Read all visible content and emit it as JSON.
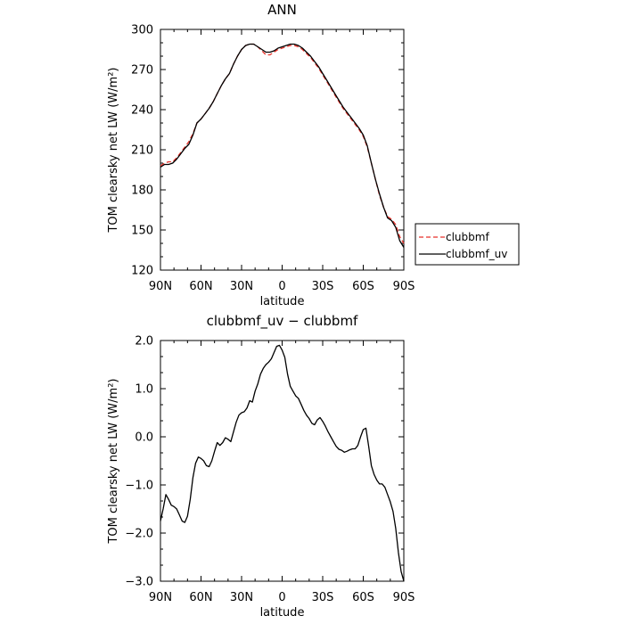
{
  "chart_data": [
    {
      "type": "line",
      "title": "ANN",
      "xlabel": "latitude",
      "ylabel": "TOM clearsky net LW (W/m²)",
      "xlim": [
        90,
        -90
      ],
      "ylim": [
        120,
        300
      ],
      "x_ticks": [
        {
          "value": 90,
          "label": "90N"
        },
        {
          "value": 60,
          "label": "60N"
        },
        {
          "value": 30,
          "label": "30N"
        },
        {
          "value": 0,
          "label": "0"
        },
        {
          "value": -30,
          "label": "30S"
        },
        {
          "value": -60,
          "label": "60S"
        },
        {
          "value": -90,
          "label": "90S"
        }
      ],
      "y_ticks": [
        {
          "value": 120,
          "label": "120"
        },
        {
          "value": 150,
          "label": "150"
        },
        {
          "value": 180,
          "label": "180"
        },
        {
          "value": 210,
          "label": "210"
        },
        {
          "value": 240,
          "label": "240"
        },
        {
          "value": 270,
          "label": "270"
        },
        {
          "value": 300,
          "label": "300"
        }
      ],
      "grid": false,
      "legend_position": "right",
      "series": [
        {
          "name": "clubbmf",
          "color": "#e8322a",
          "dash": "dashed",
          "x": [
            90,
            87,
            84,
            81,
            78,
            75,
            72,
            69,
            66,
            63,
            60,
            57,
            54,
            51,
            48,
            45,
            42,
            39,
            36,
            33,
            30,
            27,
            24,
            21,
            18,
            15,
            12,
            9,
            6,
            3,
            0,
            -3,
            -6,
            -9,
            -12,
            -15,
            -18,
            -21,
            -24,
            -27,
            -30,
            -33,
            -36,
            -39,
            -42,
            -45,
            -48,
            -51,
            -54,
            -57,
            -60,
            -63,
            -66,
            -69,
            -72,
            -75,
            -78,
            -81,
            -84,
            -87,
            -90
          ],
          "y": [
            198,
            200,
            201,
            201,
            204,
            208,
            212,
            216,
            222,
            230,
            233,
            237,
            241,
            246,
            252,
            258,
            263,
            267,
            274,
            280,
            285,
            288,
            289,
            289,
            287,
            284,
            281,
            281,
            283,
            285,
            286,
            287,
            288,
            288,
            287,
            285,
            282,
            279,
            275,
            271,
            266,
            261,
            256,
            251,
            246,
            241,
            237,
            233,
            229,
            225,
            220,
            212,
            200,
            188,
            176,
            167,
            160,
            158,
            154,
            145,
            140
          ]
        },
        {
          "name": "clubbmf_uv",
          "color": "#000000",
          "dash": "solid",
          "x": [
            90,
            87,
            84,
            81,
            78,
            75,
            72,
            69,
            66,
            63,
            60,
            57,
            54,
            51,
            48,
            45,
            42,
            39,
            36,
            33,
            30,
            27,
            24,
            21,
            18,
            15,
            12,
            9,
            6,
            3,
            0,
            -3,
            -6,
            -9,
            -12,
            -15,
            -18,
            -21,
            -24,
            -27,
            -30,
            -33,
            -36,
            -39,
            -42,
            -45,
            -48,
            -51,
            -54,
            -57,
            -60,
            -63,
            -66,
            -69,
            -72,
            -75,
            -78,
            -81,
            -84,
            -87,
            -90
          ],
          "y": [
            197,
            199,
            199,
            200,
            203,
            207,
            211,
            214,
            221,
            230,
            233,
            237,
            241,
            246,
            252,
            258,
            263,
            267,
            274,
            280,
            285,
            288,
            289,
            289,
            287,
            285,
            283,
            283,
            284,
            286,
            287,
            288,
            289,
            289,
            288,
            286,
            283,
            280,
            276,
            272,
            267,
            262,
            257,
            252,
            247,
            242,
            238,
            234,
            230,
            226,
            221,
            213,
            200,
            188,
            177,
            167,
            159,
            157,
            152,
            142,
            137
          ]
        }
      ]
    },
    {
      "type": "line",
      "title": "clubbmf_uv − clubbmf",
      "xlabel": "latitude",
      "ylabel": "TOM clearsky net LW (W/m²)",
      "xlim": [
        90,
        -90
      ],
      "ylim": [
        -3.0,
        2.0
      ],
      "x_ticks": [
        {
          "value": 90,
          "label": "90N"
        },
        {
          "value": 60,
          "label": "60N"
        },
        {
          "value": 30,
          "label": "30N"
        },
        {
          "value": 0,
          "label": "0"
        },
        {
          "value": -30,
          "label": "30S"
        },
        {
          "value": -60,
          "label": "60S"
        },
        {
          "value": -90,
          "label": "90S"
        }
      ],
      "y_ticks": [
        {
          "value": -3.0,
          "label": "−3.0"
        },
        {
          "value": -2.0,
          "label": "−2.0"
        },
        {
          "value": -1.0,
          "label": "−1.0"
        },
        {
          "value": 0.0,
          "label": "0.0"
        },
        {
          "value": 1.0,
          "label": "1.0"
        },
        {
          "value": 2.0,
          "label": "2.0"
        }
      ],
      "grid": false,
      "series": [
        {
          "color": "#000000",
          "dash": "solid",
          "x": [
            90,
            88,
            86,
            84,
            82,
            80,
            78,
            76,
            74,
            72,
            70,
            68,
            66,
            64,
            62,
            60,
            58,
            56,
            54,
            52,
            50,
            48,
            46,
            44,
            42,
            40,
            38,
            36,
            34,
            32,
            30,
            28,
            26,
            24,
            22,
            20,
            18,
            16,
            14,
            12,
            10,
            8,
            6,
            4,
            2,
            0,
            -2,
            -4,
            -6,
            -8,
            -10,
            -12,
            -14,
            -16,
            -18,
            -20,
            -22,
            -24,
            -26,
            -28,
            -30,
            -32,
            -34,
            -36,
            -38,
            -40,
            -42,
            -44,
            -46,
            -48,
            -50,
            -52,
            -54,
            -56,
            -58,
            -60,
            -62,
            -64,
            -66,
            -68,
            -70,
            -72,
            -74,
            -76,
            -78,
            -80,
            -82,
            -84,
            -86,
            -88,
            -90
          ],
          "y": [
            -1.75,
            -1.5,
            -1.2,
            -1.3,
            -1.42,
            -1.45,
            -1.5,
            -1.62,
            -1.75,
            -1.78,
            -1.65,
            -1.3,
            -0.85,
            -0.55,
            -0.42,
            -0.45,
            -0.5,
            -0.6,
            -0.62,
            -0.5,
            -0.3,
            -0.12,
            -0.18,
            -0.12,
            -0.02,
            -0.05,
            -0.1,
            0.1,
            0.3,
            0.45,
            0.5,
            0.52,
            0.6,
            0.75,
            0.72,
            0.95,
            1.1,
            1.3,
            1.42,
            1.5,
            1.55,
            1.62,
            1.75,
            1.88,
            1.9,
            1.8,
            1.65,
            1.3,
            1.05,
            0.95,
            0.85,
            0.8,
            0.68,
            0.55,
            0.45,
            0.38,
            0.28,
            0.25,
            0.35,
            0.4,
            0.32,
            0.22,
            0.1,
            0.0,
            -0.1,
            -0.2,
            -0.26,
            -0.28,
            -0.32,
            -0.3,
            -0.27,
            -0.25,
            -0.25,
            -0.18,
            0.0,
            0.15,
            0.18,
            -0.2,
            -0.6,
            -0.78,
            -0.9,
            -0.98,
            -0.98,
            -1.05,
            -1.2,
            -1.35,
            -1.55,
            -1.9,
            -2.4,
            -2.8,
            -3.0
          ]
        }
      ]
    }
  ]
}
